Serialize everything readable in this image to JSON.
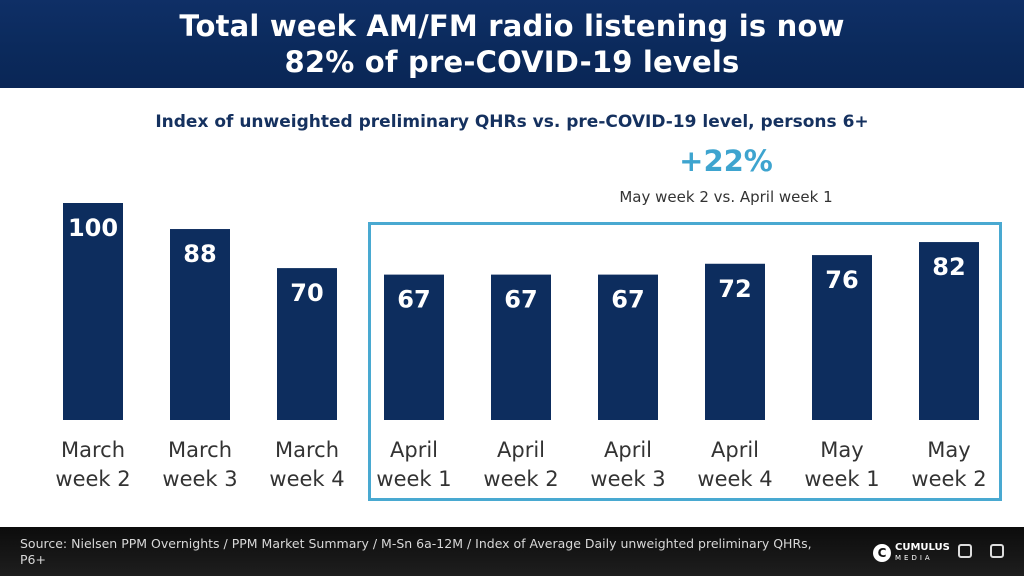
{
  "header": {
    "title_line1": "Total week AM/FM radio listening is now",
    "title_line2": "82% of pre-COVID-19 levels"
  },
  "colors": {
    "header_bg": "#0b2a5c",
    "bar": "#0d2d5e",
    "accent": "#3ea4cf",
    "label_text": "#333333"
  },
  "callout": {
    "percent": "+22%",
    "text": "May week 2 vs. April week 1"
  },
  "chart_data": {
    "type": "bar",
    "title": "Index of unweighted preliminary QHRs vs. pre-COVID-19 level, persons 6+",
    "categories": [
      [
        "March",
        "week 2"
      ],
      [
        "March",
        "week 3"
      ],
      [
        "March",
        "week 4"
      ],
      [
        "April",
        "week 1"
      ],
      [
        "April",
        "week 2"
      ],
      [
        "April",
        "week 3"
      ],
      [
        "April",
        "week 4"
      ],
      [
        "May",
        "week 1"
      ],
      [
        "May",
        "week 2"
      ]
    ],
    "values": [
      100,
      88,
      70,
      67,
      67,
      67,
      72,
      76,
      82
    ],
    "ylim": [
      0,
      100
    ],
    "grid": false,
    "data_labels": true,
    "highlighted_range": [
      "April week 1",
      "May week 2"
    ]
  },
  "footer": {
    "source": "Source: Nielsen PPM Overnights / PPM Market Summary / M-Sn 6a-12M / Index of Average Daily unweighted preliminary QHRs, P6+",
    "logo_mark_1": "C",
    "logo_name_1": "CUMULUS",
    "logo_sub_1": "MEDIA"
  }
}
